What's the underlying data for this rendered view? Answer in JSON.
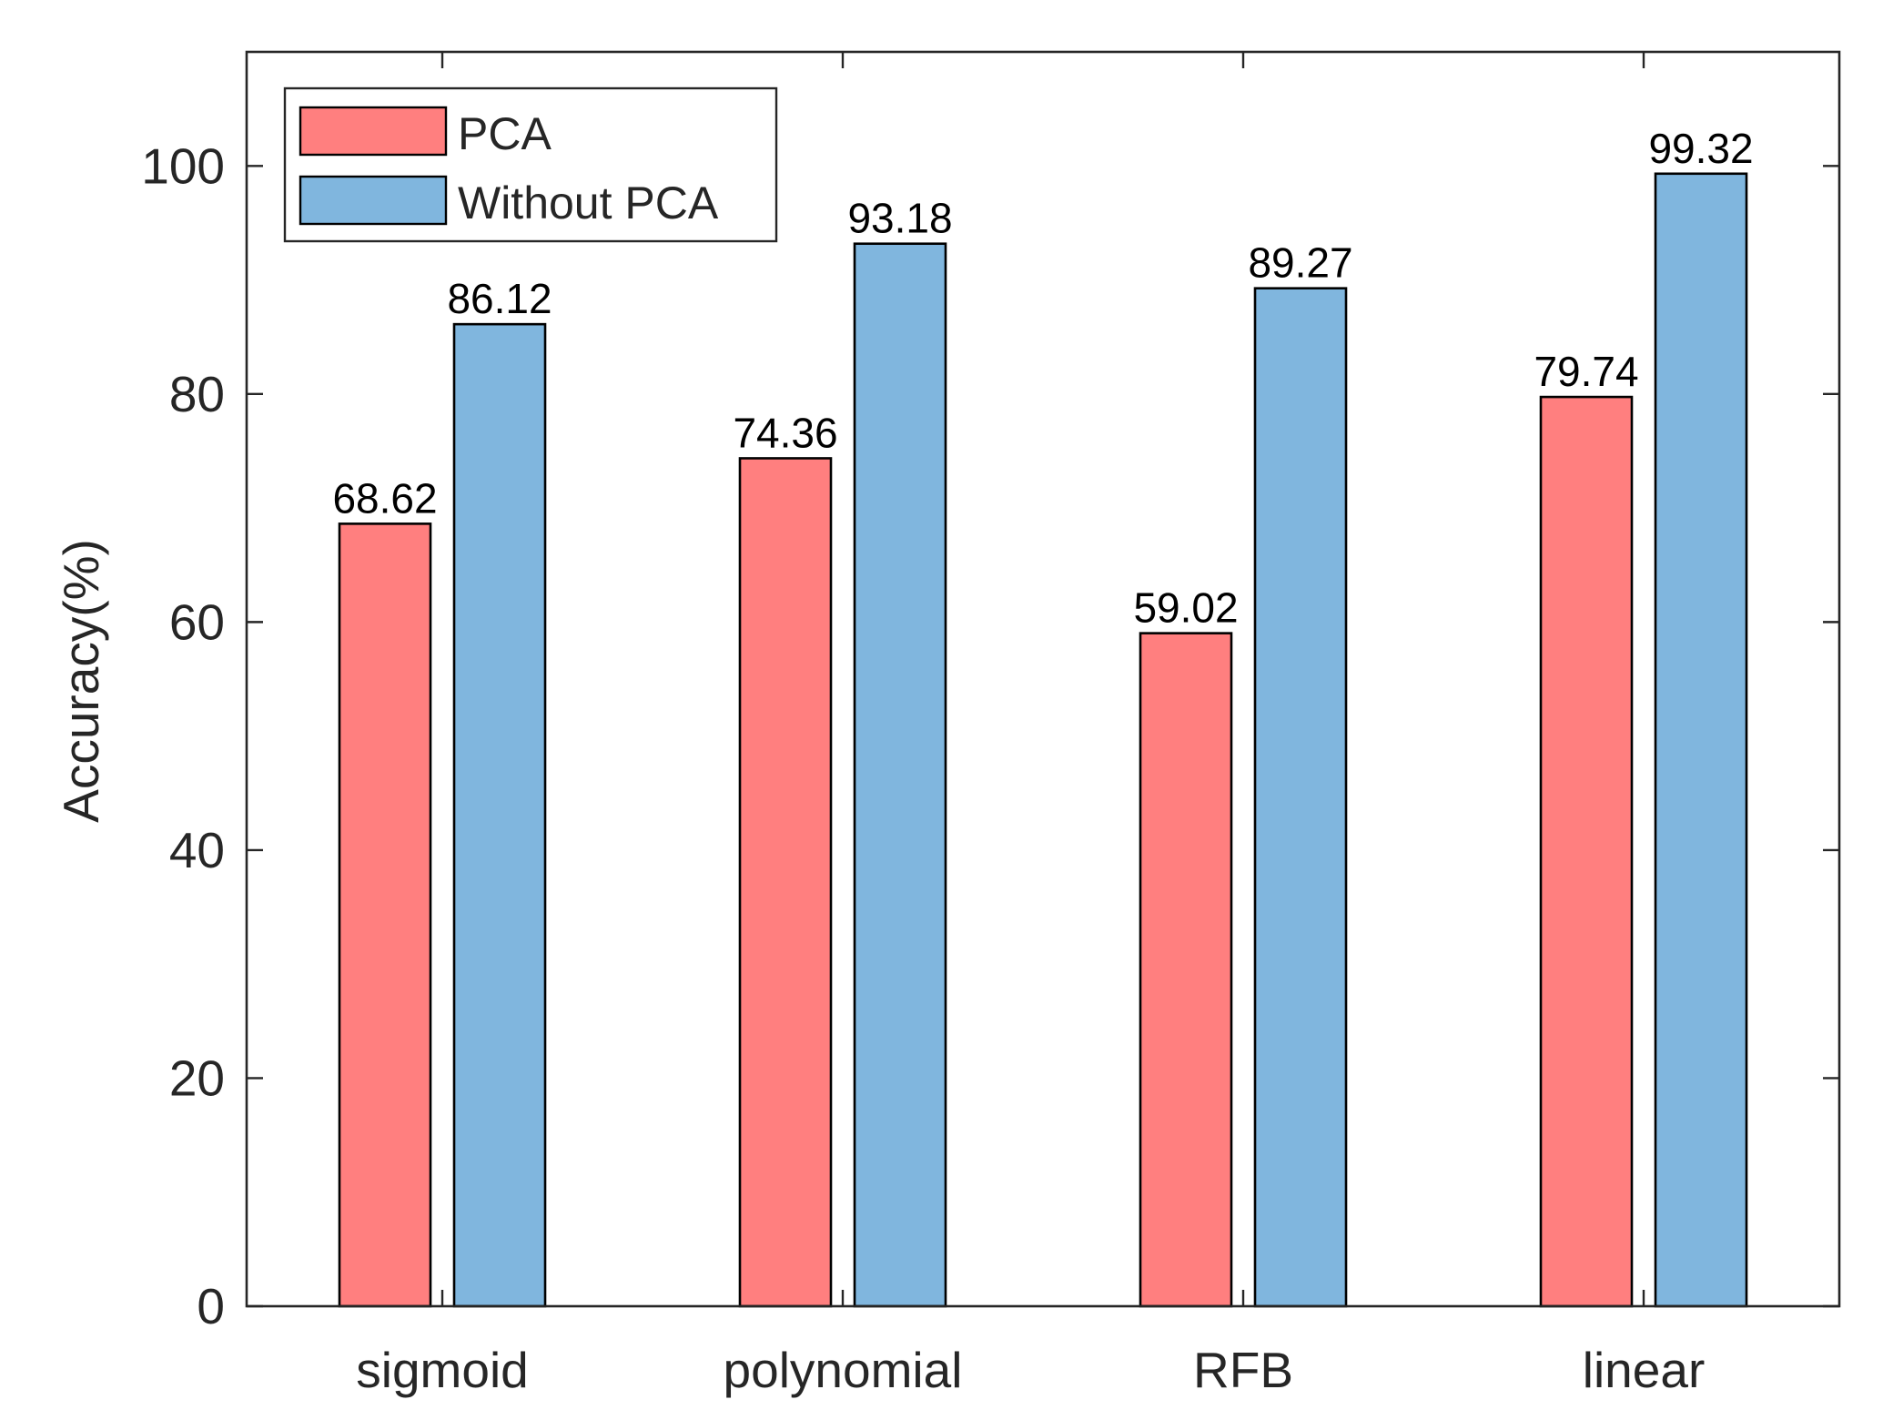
{
  "chart_data": {
    "type": "bar",
    "title": "",
    "xlabel": "",
    "ylabel": "Accuracy(%)",
    "ylim": [
      0,
      110
    ],
    "yticks": [
      0,
      20,
      40,
      60,
      80,
      100
    ],
    "categories": [
      "sigmoid",
      "polynomial",
      "RFB",
      "linear"
    ],
    "series": [
      {
        "name": "PCA",
        "color": "#ff7f7f",
        "values": [
          68.62,
          74.36,
          59.02,
          79.74
        ],
        "labels": [
          "68.62",
          "74.36",
          "59.02",
          "79.74"
        ]
      },
      {
        "name": "Without PCA",
        "color": "#80b6de",
        "values": [
          86.12,
          93.18,
          89.27,
          99.32
        ],
        "labels": [
          "86.12",
          "93.18",
          "89.27",
          "99.32"
        ]
      }
    ],
    "legend": {
      "position": "top-left",
      "entries": [
        "PCA",
        "Without PCA"
      ]
    },
    "grid": false
  }
}
